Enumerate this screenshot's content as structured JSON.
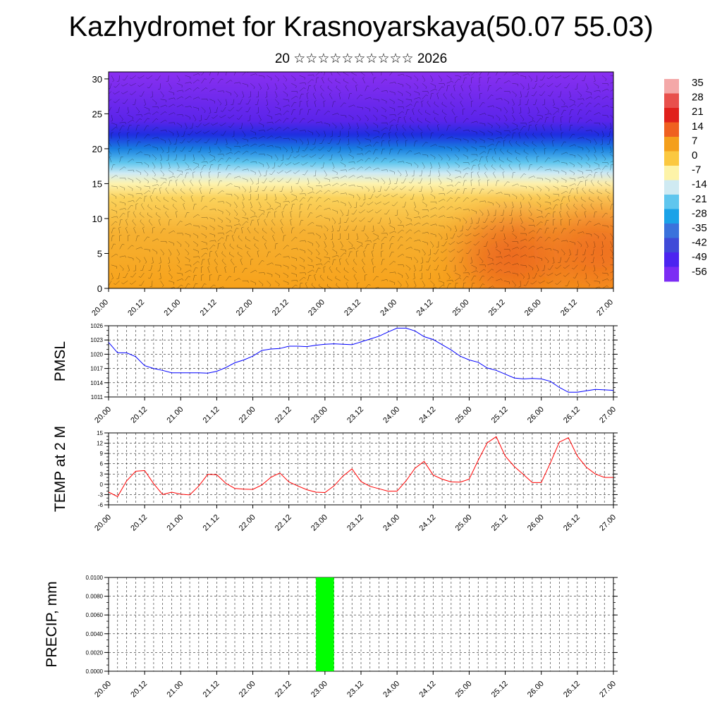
{
  "title": "Kazhydromet for Krasnoyarskaya(50.07 55.03)",
  "subtitle": "20 ☆☆☆☆☆☆☆☆☆☆ 2026",
  "colors": {
    "pmsl_line": "#0000ff",
    "temp_line": "#ff0000",
    "precip_bar": "#00ff00"
  },
  "chart_data": [
    {
      "type": "heatmap",
      "title": "",
      "xlabel": "",
      "ylabel": "",
      "x_ticks": [
        "20.00",
        "20.12",
        "21.00",
        "21.12",
        "22.00",
        "22.12",
        "23.00",
        "23.12",
        "24.00",
        "24.12",
        "25.00",
        "25.12",
        "26.00",
        "26.12",
        "27.00"
      ],
      "y_ticks": [
        0,
        5,
        10,
        15,
        20,
        25,
        30
      ],
      "ylim": [
        0,
        31
      ],
      "vectors": "wind barbs overlay",
      "colorbar": {
        "labels": [
          "35",
          "28",
          "21",
          "14",
          "7",
          "0",
          "-7",
          "-14",
          "-21",
          "-28",
          "-35",
          "-42",
          "-49",
          "-56"
        ],
        "colors": [
          "#f4a8a8",
          "#e8504c",
          "#e0201c",
          "#ef6020",
          "#f49f1c",
          "#fbc840",
          "#fdf3a8",
          "#cfeaf2",
          "#5fc6ee",
          "#1aa2e8",
          "#3a72dc",
          "#3f4ad8",
          "#4c24f0",
          "#7c2cf4"
        ]
      },
      "profile": [
        {
          "level": 0,
          "color": "#f7a21b"
        },
        {
          "level": 8,
          "color": "#f6b132"
        },
        {
          "level": 13,
          "color": "#fbd35c"
        },
        {
          "level": 15,
          "color": "#fdf3b0"
        },
        {
          "level": 16.5,
          "color": "#cfeaf4"
        },
        {
          "level": 18,
          "color": "#5fc6ee"
        },
        {
          "level": 20,
          "color": "#1a7fe0"
        },
        {
          "level": 22,
          "color": "#1e2ee0"
        },
        {
          "level": 24,
          "color": "#5a24ea"
        },
        {
          "level": 31,
          "color": "#8a30f0"
        }
      ],
      "warm_cells": [
        {
          "day": 5.6,
          "level": 4.5,
          "color": "#ea5a1a"
        },
        {
          "day": 6.8,
          "level": 5.5,
          "color": "#ed601c"
        }
      ]
    },
    {
      "type": "line",
      "title": "",
      "xlabel": "",
      "ylabel": "PMSL",
      "ylim": [
        1011,
        1026
      ],
      "y_ticks": [
        1011,
        1014,
        1017,
        1020,
        1023,
        1026
      ],
      "x_ticks": [
        "20.00",
        "20.12",
        "21.00",
        "21.12",
        "22.00",
        "22.12",
        "23.00",
        "23.12",
        "24.00",
        "24.12",
        "25.00",
        "25.12",
        "26.00",
        "26.12",
        "27.00"
      ],
      "series": [
        {
          "name": "PMSL",
          "x": [
            0,
            0.125,
            0.25,
            0.375,
            0.5,
            0.625,
            0.75,
            0.875,
            1,
            1.125,
            1.25,
            1.375,
            1.5,
            1.625,
            1.75,
            1.875,
            2,
            2.125,
            2.25,
            2.375,
            2.5,
            2.625,
            2.75,
            2.875,
            3,
            3.125,
            3.25,
            3.375,
            3.5,
            3.625,
            3.75,
            3.875,
            4,
            4.125,
            4.25,
            4.375,
            4.5,
            4.625,
            4.75,
            4.875,
            5,
            5.125,
            5.25,
            5.375,
            5.5,
            5.625,
            5.75,
            5.875,
            6,
            6.125,
            6.25,
            6.375,
            6.5,
            6.625,
            6.75,
            6.875,
            7
          ],
          "values": [
            1022.5,
            1020.3,
            1020.3,
            1019.5,
            1017.6,
            1017,
            1016.6,
            1016.1,
            1016.1,
            1016.1,
            1016.1,
            1016,
            1016.4,
            1017.2,
            1018.2,
            1018.8,
            1019.6,
            1020.8,
            1021.1,
            1021.2,
            1021.7,
            1021.7,
            1021.6,
            1021.9,
            1022.1,
            1022.2,
            1022.1,
            1022,
            1022.6,
            1023.2,
            1023.8,
            1024.7,
            1025.5,
            1025.5,
            1024.9,
            1023.7,
            1023.1,
            1022.0,
            1020.9,
            1019.6,
            1018.8,
            1018.3,
            1017.1,
            1016.6,
            1015.8,
            1015.0,
            1014.8,
            1014.9,
            1014.8,
            1014.3,
            1013.0,
            1012.0,
            1012.0,
            1012.3,
            1012.6,
            1012.5,
            1012.4
          ]
        }
      ]
    },
    {
      "type": "line",
      "title": "",
      "xlabel": "",
      "ylabel": "TEMP at 2 M",
      "ylim": [
        -6,
        15
      ],
      "y_ticks": [
        -6,
        -3,
        0,
        3,
        6,
        9,
        12,
        15
      ],
      "x_ticks": [
        "20.00",
        "20.12",
        "21.00",
        "21.12",
        "22.00",
        "22.12",
        "23.00",
        "23.12",
        "24.00",
        "24.12",
        "25.00",
        "25.12",
        "26.00",
        "26.12",
        "27.00"
      ],
      "series": [
        {
          "name": "TEMP at 2 M",
          "x": [
            0,
            0.125,
            0.25,
            0.375,
            0.5,
            0.625,
            0.75,
            0.875,
            1,
            1.125,
            1.25,
            1.375,
            1.5,
            1.625,
            1.75,
            1.875,
            2,
            2.125,
            2.25,
            2.375,
            2.5,
            2.625,
            2.75,
            2.875,
            3,
            3.125,
            3.25,
            3.375,
            3.5,
            3.625,
            3.75,
            3.875,
            4,
            4.125,
            4.25,
            4.375,
            4.5,
            4.625,
            4.75,
            4.875,
            5,
            5.125,
            5.25,
            5.375,
            5.5,
            5.625,
            5.75,
            5.875,
            6,
            6.125,
            6.25,
            6.375,
            6.5,
            6.625,
            6.75,
            6.875,
            7
          ],
          "values": [
            -2.3,
            -3.6,
            1,
            3.8,
            4,
            0.2,
            -3,
            -2.3,
            -2.9,
            -3.1,
            -0.5,
            2.9,
            2.8,
            0.3,
            -1.2,
            -1.4,
            -1.5,
            -0.2,
            2,
            3.3,
            0.7,
            -0.5,
            -1.6,
            -2.3,
            -2.4,
            -0.5,
            2.4,
            4.5,
            0.8,
            -0.6,
            -1.3,
            -2.0,
            -2.0,
            1,
            4.7,
            6.7,
            2.7,
            1.5,
            0.7,
            0.6,
            1.5,
            7.0,
            12.1,
            13.9,
            8.2,
            5.2,
            2.9,
            0.5,
            0.5,
            6.2,
            12.3,
            13.6,
            8.2,
            5.0,
            3.0,
            2.0,
            2.0
          ]
        }
      ]
    },
    {
      "type": "bar",
      "title": "",
      "xlabel": "",
      "ylabel": "PRECIP, mm",
      "ylim": [
        0,
        0.01
      ],
      "y_ticks": [
        "0.0000",
        "0.0020",
        "0.0040",
        "0.0060",
        "0.0080",
        "0.0100"
      ],
      "x_ticks": [
        "20.00",
        "20.12",
        "21.00",
        "21.12",
        "22.00",
        "22.12",
        "23.00",
        "23.12",
        "24.00",
        "24.12",
        "25.00",
        "25.12",
        "26.00",
        "26.12",
        "27.00"
      ],
      "bars": [
        {
          "start": 2.875,
          "end": 3.125,
          "value": 0.01
        }
      ]
    }
  ]
}
